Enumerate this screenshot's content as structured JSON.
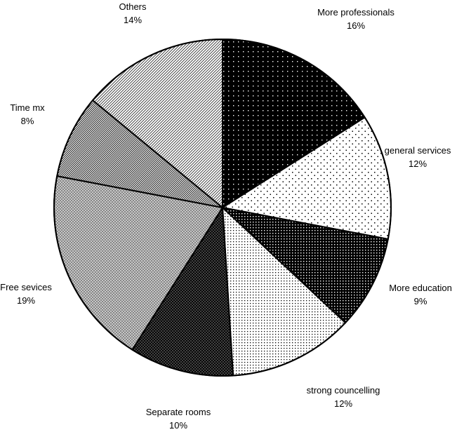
{
  "chart_data": {
    "type": "pie",
    "title": "",
    "start_angle_deg": 0,
    "direction": "clockwise",
    "slices": [
      {
        "label": "More professionals",
        "value": 16,
        "value_label": "16%",
        "pattern": "dense-dots-dark"
      },
      {
        "label": "general services",
        "value": 12,
        "value_label": "12%",
        "pattern": "sparse-dots"
      },
      {
        "label": "More education",
        "value": 9,
        "value_label": "9%",
        "pattern": "dark-grid"
      },
      {
        "label": "strong councelling",
        "value": 12,
        "value_label": "12%",
        "pattern": "fine-dots"
      },
      {
        "label": "Separate rooms",
        "value": 10,
        "value_label": "10%",
        "pattern": "crosshatch-dark"
      },
      {
        "label": "Free sevices",
        "value": 19,
        "value_label": "19%",
        "pattern": "crosshatch-light"
      },
      {
        "label": "Time mx",
        "value": 8,
        "value_label": "8%",
        "pattern": "diagonal-dense"
      },
      {
        "label": "Others",
        "value": 14,
        "value_label": "14%",
        "pattern": "diagonal-light"
      }
    ],
    "colors": {
      "outline": "#000000",
      "background": "#ffffff"
    }
  }
}
